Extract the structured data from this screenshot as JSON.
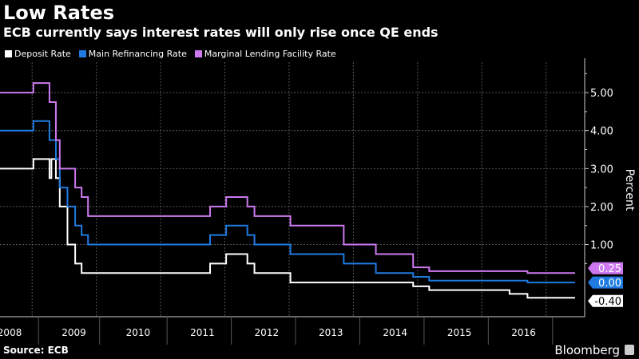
{
  "header": {
    "title": "Low Rates",
    "subtitle": "ECB currently says interest rates will only rise once QE ends"
  },
  "footer": {
    "source": "Source: ECB",
    "brand": "Bloomberg"
  },
  "chart_data": {
    "type": "line",
    "step": true,
    "title": "Low Rates",
    "subtitle": "ECB currently says interest rates will only rise once QE ends",
    "xlabel": "",
    "ylabel": "Percent",
    "xlim": [
      2008.0,
      2017.1
    ],
    "ylim": [
      -0.9,
      5.8
    ],
    "y_ticks": [
      1.0,
      2.0,
      3.0,
      4.0,
      5.0
    ],
    "y_tick_labels": [
      "1.00",
      "2.00",
      "3.00",
      "4.00",
      "5.00"
    ],
    "x_tick_labels": [
      "2008",
      "2009",
      "2010",
      "2011",
      "2012",
      "2013",
      "2014",
      "2015",
      "2016"
    ],
    "x_tick_positions": [
      2008,
      2009,
      2010,
      2011,
      2012,
      2013,
      2014,
      2015,
      2016
    ],
    "grid": true,
    "legend_position": "top-left",
    "series": [
      {
        "name": "Deposit Rate",
        "color": "#ffffff",
        "label": "-0.40",
        "points": [
          [
            2008.0,
            3.0
          ],
          [
            2008.52,
            3.25
          ],
          [
            2008.77,
            2.75
          ],
          [
            2008.8,
            3.25
          ],
          [
            2008.87,
            2.75
          ],
          [
            2008.93,
            2.0
          ],
          [
            2009.05,
            1.0
          ],
          [
            2009.17,
            0.5
          ],
          [
            2009.27,
            0.25
          ],
          [
            2011.27,
            0.5
          ],
          [
            2011.52,
            0.75
          ],
          [
            2011.85,
            0.5
          ],
          [
            2011.96,
            0.25
          ],
          [
            2012.52,
            0.0
          ],
          [
            2014.43,
            -0.1
          ],
          [
            2014.68,
            -0.2
          ],
          [
            2015.93,
            -0.3
          ],
          [
            2016.21,
            -0.4
          ],
          [
            2016.95,
            -0.4
          ]
        ]
      },
      {
        "name": "Main Refinancing Rate",
        "color": "#1f7be0",
        "label": "0.00",
        "points": [
          [
            2008.0,
            4.0
          ],
          [
            2008.52,
            4.25
          ],
          [
            2008.77,
            3.75
          ],
          [
            2008.87,
            3.25
          ],
          [
            2008.93,
            2.5
          ],
          [
            2009.05,
            2.0
          ],
          [
            2009.17,
            1.5
          ],
          [
            2009.27,
            1.25
          ],
          [
            2009.37,
            1.0
          ],
          [
            2011.27,
            1.25
          ],
          [
            2011.52,
            1.5
          ],
          [
            2011.85,
            1.25
          ],
          [
            2011.96,
            1.0
          ],
          [
            2012.52,
            0.75
          ],
          [
            2013.35,
            0.5
          ],
          [
            2013.85,
            0.25
          ],
          [
            2014.43,
            0.15
          ],
          [
            2014.68,
            0.05
          ],
          [
            2016.21,
            0.0
          ],
          [
            2016.95,
            0.0
          ]
        ]
      },
      {
        "name": "Marginal Lending Facility Rate",
        "color": "#cc79f0",
        "label": "0.25",
        "points": [
          [
            2008.0,
            5.0
          ],
          [
            2008.52,
            5.25
          ],
          [
            2008.77,
            4.75
          ],
          [
            2008.87,
            3.75
          ],
          [
            2008.93,
            3.0
          ],
          [
            2009.05,
            3.0
          ],
          [
            2009.17,
            2.5
          ],
          [
            2009.27,
            2.25
          ],
          [
            2009.37,
            1.75
          ],
          [
            2011.27,
            2.0
          ],
          [
            2011.52,
            2.25
          ],
          [
            2011.85,
            2.0
          ],
          [
            2011.96,
            1.75
          ],
          [
            2012.52,
            1.5
          ],
          [
            2013.35,
            1.0
          ],
          [
            2013.85,
            0.75
          ],
          [
            2014.43,
            0.4
          ],
          [
            2014.68,
            0.3
          ],
          [
            2016.21,
            0.25
          ],
          [
            2016.95,
            0.25
          ]
        ]
      }
    ]
  }
}
